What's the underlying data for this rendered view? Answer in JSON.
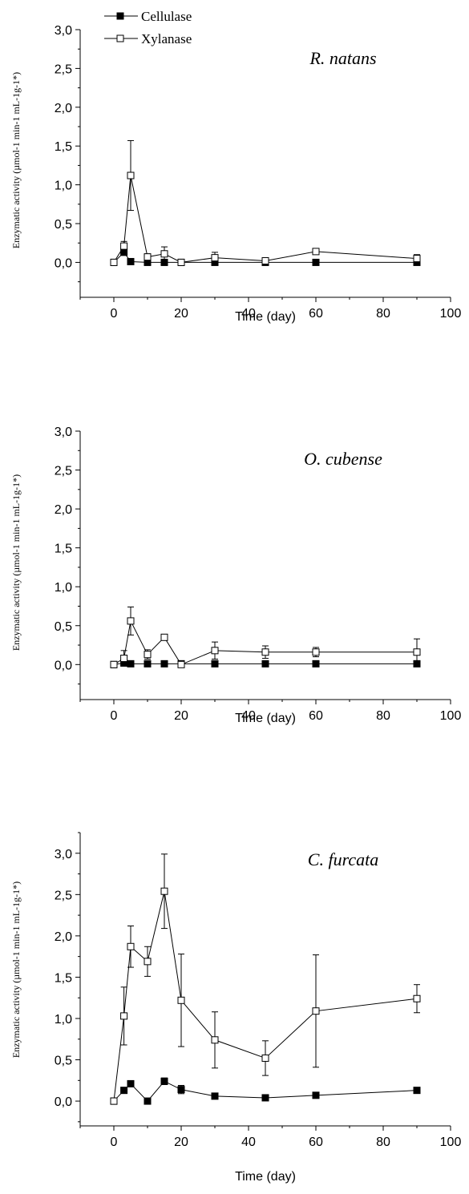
{
  "legend": {
    "placement": "top-left",
    "entries": [
      {
        "name": "Cellulase",
        "marker": "filled-square"
      },
      {
        "name": "Xylanase",
        "marker": "open-square"
      }
    ]
  },
  "colors": {
    "line": "#000000",
    "filled_marker": "#000000",
    "open_marker": "#ffffff",
    "background": "#ffffff"
  },
  "chart_data": [
    {
      "type": "line",
      "title": "R. natans",
      "xlabel": "Time (day)",
      "ylabel": "Enzymatic activity (µmol-1 min-1 mL-1g-1*)",
      "xlim": [
        -10,
        100
      ],
      "ylim": [
        -0.45,
        3.0
      ],
      "xticks": [
        0,
        20,
        40,
        60,
        80,
        100
      ],
      "xtick_labels": [
        "0",
        "20",
        "40",
        "60",
        "80",
        "100"
      ],
      "yticks": [
        0,
        0.5,
        1.0,
        1.5,
        2.0,
        2.5,
        3.0
      ],
      "ytick_labels": [
        "0,0",
        "0,5",
        "1,0",
        "1,5",
        "2,0",
        "2,5",
        "3,0"
      ],
      "grid": false,
      "x": [
        0,
        3,
        5,
        10,
        15,
        20,
        30,
        45,
        60,
        90
      ],
      "series": [
        {
          "name": "Cellulase",
          "marker": "filled",
          "values": [
            0,
            0.13,
            0.01,
            0,
            0,
            0,
            0,
            0,
            0,
            0
          ],
          "errors": [
            0,
            0.02,
            0,
            0,
            0,
            0,
            0,
            0,
            0,
            0
          ]
        },
        {
          "name": "Xylanase",
          "marker": "open",
          "values": [
            0,
            0.21,
            1.12,
            0.07,
            0.11,
            0,
            0.06,
            0.02,
            0.14,
            0.05
          ],
          "errors": [
            0,
            0.06,
            0.45,
            0.04,
            0.09,
            0,
            0.07,
            0.02,
            0.03,
            0.05
          ]
        }
      ]
    },
    {
      "type": "line",
      "title": "O. cubense",
      "xlabel": "Time (day)",
      "ylabel": "Enzymatic activity (µmol-1 min-1 mL-1g-1*)",
      "xlim": [
        -10,
        100
      ],
      "ylim": [
        -0.45,
        3.0
      ],
      "xticks": [
        0,
        20,
        40,
        60,
        80,
        100
      ],
      "xtick_labels": [
        "0",
        "20",
        "40",
        "60",
        "80",
        "100"
      ],
      "yticks": [
        0,
        0.5,
        1.0,
        1.5,
        2.0,
        2.5,
        3.0
      ],
      "ytick_labels": [
        "0,0",
        "0,5",
        "1,0",
        "1,5",
        "2,0",
        "2,5",
        "3,0"
      ],
      "grid": false,
      "x": [
        0,
        3,
        5,
        10,
        15,
        20,
        30,
        45,
        60,
        90
      ],
      "series": [
        {
          "name": "Cellulase",
          "marker": "filled",
          "values": [
            0,
            0.02,
            0.01,
            0.01,
            0.01,
            0.01,
            0.01,
            0.01,
            0.01,
            0.01
          ],
          "errors": [
            0,
            0,
            0,
            0,
            0,
            0,
            0,
            0,
            0,
            0
          ]
        },
        {
          "name": "Xylanase",
          "marker": "open",
          "values": [
            0,
            0.08,
            0.56,
            0.13,
            0.35,
            0,
            0.18,
            0.16,
            0.16,
            0.16
          ],
          "errors": [
            0,
            0.1,
            0.18,
            0.06,
            0.03,
            0,
            0.11,
            0.08,
            0.06,
            0.17
          ]
        }
      ]
    },
    {
      "type": "line",
      "title": "C. furcata",
      "xlabel": "Time (day)",
      "ylabel": "Enzymatic activity (µmol-1 min-1 mL-1g-1*)",
      "xlim": [
        -10,
        100
      ],
      "ylim": [
        -0.3,
        3.25
      ],
      "xticks": [
        0,
        20,
        40,
        60,
        80,
        100
      ],
      "xtick_labels": [
        "0",
        "20",
        "40",
        "60",
        "80",
        "100"
      ],
      "yticks": [
        0,
        0.5,
        1.0,
        1.5,
        2.0,
        2.5,
        3.0
      ],
      "ytick_labels": [
        "0,0",
        "0,5",
        "1,0",
        "1,5",
        "2,0",
        "2,5",
        "3,0"
      ],
      "grid": false,
      "x": [
        0,
        3,
        5,
        10,
        15,
        20,
        30,
        45,
        60,
        90
      ],
      "series": [
        {
          "name": "Cellulase",
          "marker": "filled",
          "values": [
            0,
            0.13,
            0.21,
            0,
            0.24,
            0.14,
            0.06,
            0.04,
            0.07,
            0.13
          ],
          "errors": [
            0,
            0.03,
            0.03,
            0,
            0.04,
            0.05,
            0.02,
            0.01,
            0.01,
            0.02
          ]
        },
        {
          "name": "Xylanase",
          "marker": "open",
          "values": [
            0,
            1.03,
            1.87,
            1.69,
            2.54,
            1.22,
            0.74,
            0.52,
            1.09,
            1.24
          ],
          "errors": [
            0,
            0.35,
            0.25,
            0.18,
            0.45,
            0.56,
            0.34,
            0.21,
            0.68,
            0.17
          ]
        }
      ]
    }
  ]
}
